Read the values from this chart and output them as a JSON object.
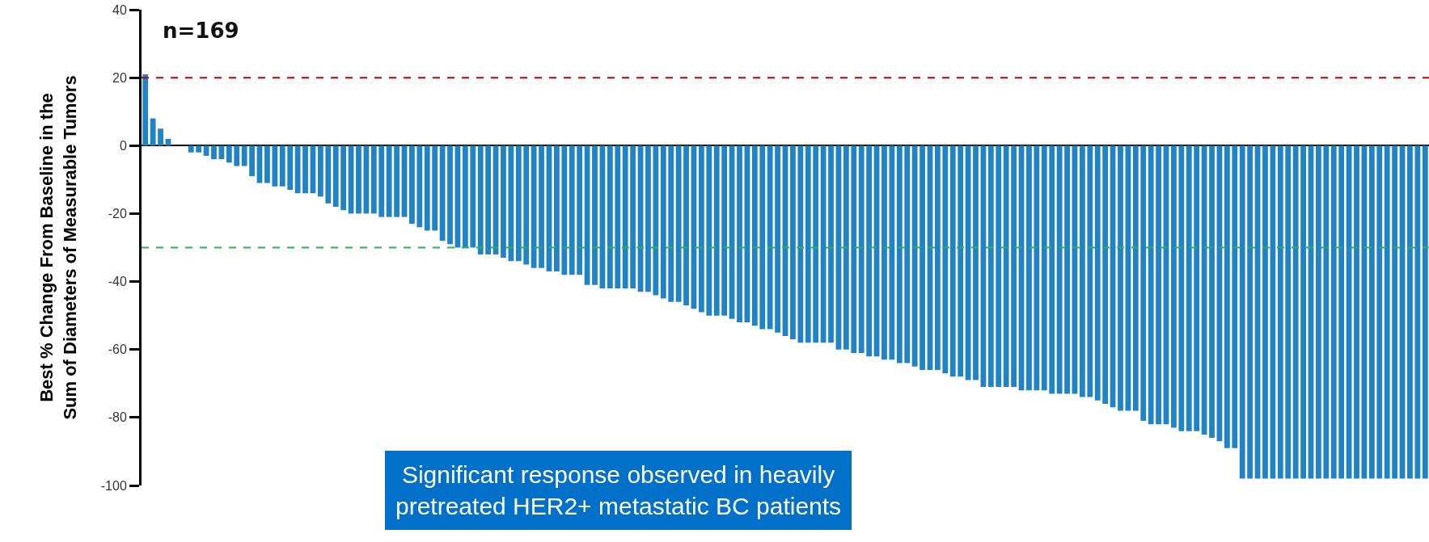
{
  "chart_data": {
    "type": "bar",
    "ylabel": "Best % Change From Baseline in the\nSum of Diameters of Measurable Tumors",
    "categories": [
      null,
      null,
      null,
      null,
      null,
      null,
      null,
      null,
      null,
      null,
      null,
      null,
      null,
      null,
      null,
      null,
      null,
      null,
      null,
      null,
      null,
      null,
      null,
      null,
      null,
      null,
      null,
      null,
      null,
      null,
      null,
      null,
      null,
      null,
      null,
      null,
      null,
      null,
      null,
      null,
      null,
      null,
      null,
      null,
      null,
      null,
      null,
      null,
      null,
      null,
      null,
      null,
      null,
      null,
      null,
      null,
      null,
      null,
      null,
      null,
      null,
      null,
      null,
      null,
      null,
      null,
      null,
      null,
      null,
      null,
      null,
      null,
      null,
      null,
      null,
      null,
      null,
      null,
      null,
      null,
      null,
      null,
      null,
      null,
      null,
      null,
      null,
      null,
      null,
      null,
      null,
      null,
      null,
      null,
      null,
      null,
      null,
      null,
      null,
      null,
      null,
      null,
      null,
      null,
      null,
      null,
      null,
      null,
      null,
      null,
      null,
      null,
      null,
      null,
      null,
      null,
      null,
      null,
      null,
      null,
      null,
      null,
      null,
      null,
      null,
      null,
      null,
      null,
      null,
      null,
      null,
      null,
      null,
      null,
      null,
      null,
      null,
      null,
      null,
      null,
      null,
      null,
      null,
      null,
      null,
      null,
      null,
      null,
      null,
      null,
      null,
      null,
      null,
      null,
      null,
      null,
      null,
      null,
      null,
      null,
      null,
      null,
      null,
      null,
      null,
      null,
      null,
      null,
      null
    ],
    "values": [
      21,
      8,
      5,
      2,
      0,
      0,
      -2,
      -2,
      -3,
      -4,
      -4,
      -5,
      -6,
      -6,
      -9,
      -11,
      -11,
      -12,
      -12,
      -13,
      -14,
      -14,
      -14,
      -15,
      -17,
      -18,
      -19,
      -20,
      -20,
      -20,
      -20,
      -21,
      -21,
      -21,
      -21,
      -23,
      -24,
      -25,
      -25,
      -28,
      -29,
      -30,
      -30,
      -30,
      -32,
      -32,
      -32,
      -33,
      -34,
      -34,
      -35,
      -36,
      -36,
      -37,
      -37,
      -38,
      -38,
      -38,
      -41,
      -41,
      -42,
      -42,
      -42,
      -42,
      -42,
      -43,
      -43,
      -44,
      -45,
      -46,
      -46,
      -47,
      -48,
      -49,
      -50,
      -50,
      -50,
      -51,
      -52,
      -52,
      -53,
      -54,
      -54,
      -55,
      -56,
      -57,
      -58,
      -58,
      -58,
      -58,
      -58,
      -60,
      -60,
      -61,
      -61,
      -62,
      -62,
      -63,
      -63,
      -64,
      -64,
      -65,
      -66,
      -66,
      -66,
      -67,
      -68,
      -68,
      -69,
      -69,
      -71,
      -71,
      -71,
      -71,
      -71,
      -72,
      -72,
      -72,
      -72,
      -73,
      -73,
      -73,
      -73,
      -74,
      -74,
      -75,
      -76,
      -77,
      -78,
      -78,
      -78,
      -81,
      -82,
      -82,
      -82,
      -83,
      -84,
      -84,
      -84,
      -85,
      -86,
      -87,
      -89,
      -89,
      -98,
      -98,
      -98,
      -98,
      -98,
      -98,
      -98,
      -98,
      -98,
      -98,
      -98,
      -98,
      -98,
      -98,
      -98,
      -98,
      -98,
      -98,
      -98,
      -98,
      -98,
      -98,
      -98,
      -98,
      -98
    ],
    "color": "#1f83c6",
    "ylim": [
      -100,
      40
    ],
    "yticks": [
      -100,
      -80,
      -60,
      -40,
      -20,
      0,
      20,
      40
    ],
    "ref_lines": [
      {
        "axis": "y",
        "value": 20,
        "color": "#c00000",
        "line_style": "dashed"
      },
      {
        "axis": "y",
        "value": -30,
        "color": "#2db34a",
        "line_style": "dashed"
      }
    ],
    "annotations": [
      "n=169",
      "Significant response observed in heavily\npretreated HER2+ metastatic BC patients"
    ],
    "tick_labels": "y"
  }
}
